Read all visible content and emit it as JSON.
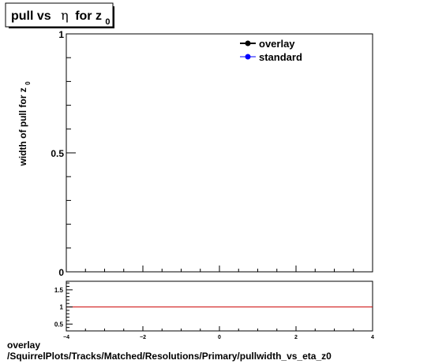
{
  "title": {
    "prefix": "pull vs",
    "eta_symbol": "η",
    "for_text": "for z",
    "subscript": "0"
  },
  "ylabel": {
    "main": "width of pull for z",
    "subscript": "0"
  },
  "footer": {
    "line1": "overlay",
    "line2": "/SquirrelPlots/Tracks/Matched/Resolutions/Primary/pullwidth_vs_eta_z0"
  },
  "chart_data": [
    {
      "type": "line",
      "title": "pull vs η for z0",
      "xlabel": "",
      "ylabel": "width of pull for z0",
      "xlim": [
        -4,
        4
      ],
      "ylim": [
        0,
        1
      ],
      "y_ticks": [
        {
          "value": 0,
          "label": "0"
        },
        {
          "value": 0.5,
          "label": "0.5"
        },
        {
          "value": 1,
          "label": "1"
        }
      ],
      "legend_position": "top-right",
      "series": [
        {
          "name": "overlay",
          "color": "#000000",
          "values": []
        },
        {
          "name": "standard",
          "color": "#0000ff",
          "values": []
        }
      ]
    },
    {
      "type": "line",
      "title": "",
      "xlim": [
        -4,
        4
      ],
      "ylim": [
        0.3,
        1.75
      ],
      "x_ticks": [
        {
          "value": -4,
          "label": "−4"
        },
        {
          "value": -2,
          "label": "−2"
        },
        {
          "value": 0,
          "label": "0"
        },
        {
          "value": 2,
          "label": "2"
        },
        {
          "value": 4,
          "label": "4"
        }
      ],
      "y_ticks": [
        {
          "value": 0.5,
          "label": "0.5"
        },
        {
          "value": 1,
          "label": "1"
        },
        {
          "value": 1.5,
          "label": "1.5"
        }
      ],
      "reference_line": {
        "y": 1,
        "color": "#cc0000"
      }
    }
  ]
}
